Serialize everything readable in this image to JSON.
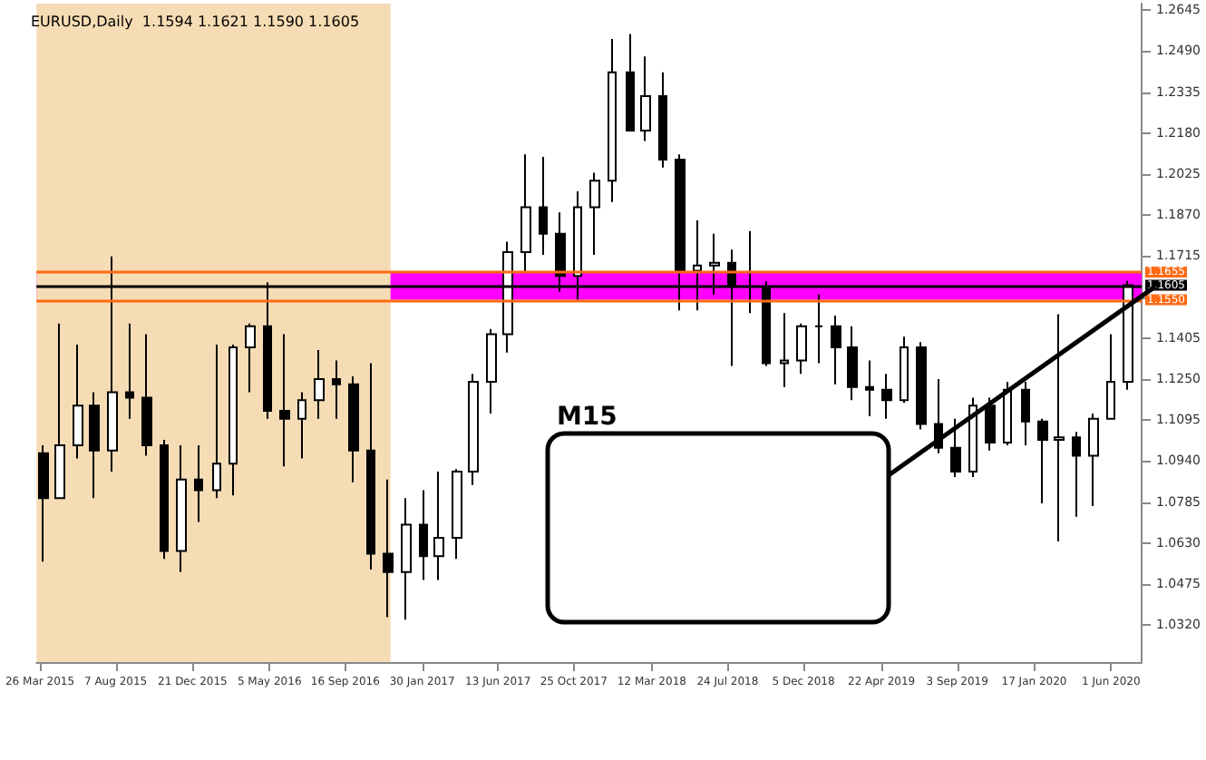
{
  "chart_data": {
    "type": "candlestick",
    "title": "EURUSD,Daily  1.1594 1.1621 1.1590 1.1605",
    "x": [
      "2015-04",
      "2015-05",
      "2015-06",
      "2015-07",
      "2015-08",
      "2015-09",
      "2015-10",
      "2015-11",
      "2015-12",
      "2016-01",
      "2016-02",
      "2016-03",
      "2016-04",
      "2016-05",
      "2016-06",
      "2016-07",
      "2016-08",
      "2016-09",
      "2016-10",
      "2016-11",
      "2016-12",
      "2017-01",
      "2017-02",
      "2017-03",
      "2017-04",
      "2017-05",
      "2017-06",
      "2017-07",
      "2017-08",
      "2017-09",
      "2017-10",
      "2017-11",
      "2017-12",
      "2018-01",
      "2018-02",
      "2018-03",
      "2018-04",
      "2018-05",
      "2018-06",
      "2018-07",
      "2018-08",
      "2018-09",
      "2018-10",
      "2018-11",
      "2018-12",
      "2019-01",
      "2019-02",
      "2019-03",
      "2019-04",
      "2019-05",
      "2019-06",
      "2019-07",
      "2019-08",
      "2019-09",
      "2019-10",
      "2019-11",
      "2019-12",
      "2020-01",
      "2020-02",
      "2020-03",
      "2020-04",
      "2020-05",
      "2020-06",
      "2020-07"
    ],
    "ohlc": [
      [
        1.097,
        1.1,
        1.056,
        1.08
      ],
      [
        1.08,
        1.146,
        1.08,
        1.1
      ],
      [
        1.1,
        1.138,
        1.095,
        1.115
      ],
      [
        1.115,
        1.12,
        1.08,
        1.098
      ],
      [
        1.098,
        1.1714,
        1.09,
        1.12
      ],
      [
        1.12,
        1.146,
        1.11,
        1.118
      ],
      [
        1.118,
        1.142,
        1.096,
        1.1
      ],
      [
        1.1,
        1.102,
        1.057,
        1.06
      ],
      [
        1.06,
        1.1,
        1.052,
        1.087
      ],
      [
        1.087,
        1.1,
        1.071,
        1.083
      ],
      [
        1.083,
        1.138,
        1.08,
        1.093
      ],
      [
        1.093,
        1.138,
        1.081,
        1.137
      ],
      [
        1.137,
        1.146,
        1.12,
        1.145
      ],
      [
        1.145,
        1.1616,
        1.11,
        1.113
      ],
      [
        1.113,
        1.142,
        1.092,
        1.11
      ],
      [
        1.11,
        1.12,
        1.095,
        1.117
      ],
      [
        1.117,
        1.136,
        1.11,
        1.125
      ],
      [
        1.125,
        1.132,
        1.11,
        1.123
      ],
      [
        1.123,
        1.126,
        1.086,
        1.098
      ],
      [
        1.098,
        1.131,
        1.053,
        1.059
      ],
      [
        1.059,
        1.087,
        1.035,
        1.052
      ],
      [
        1.052,
        1.08,
        1.034,
        1.07
      ],
      [
        1.07,
        1.083,
        1.049,
        1.058
      ],
      [
        1.058,
        1.09,
        1.049,
        1.065
      ],
      [
        1.065,
        1.091,
        1.057,
        1.09
      ],
      [
        1.09,
        1.127,
        1.085,
        1.124
      ],
      [
        1.124,
        1.144,
        1.112,
        1.142
      ],
      [
        1.142,
        1.177,
        1.135,
        1.173
      ],
      [
        1.173,
        1.21,
        1.165,
        1.19
      ],
      [
        1.19,
        1.209,
        1.172,
        1.18
      ],
      [
        1.18,
        1.188,
        1.158,
        1.164
      ],
      [
        1.164,
        1.196,
        1.155,
        1.19
      ],
      [
        1.19,
        1.203,
        1.172,
        1.2
      ],
      [
        1.2,
        1.2536,
        1.192,
        1.241
      ],
      [
        1.241,
        1.2555,
        1.219,
        1.219
      ],
      [
        1.219,
        1.247,
        1.215,
        1.232
      ],
      [
        1.232,
        1.241,
        1.205,
        1.208
      ],
      [
        1.208,
        1.21,
        1.151,
        1.166
      ],
      [
        1.166,
        1.185,
        1.151,
        1.168
      ],
      [
        1.168,
        1.18,
        1.157,
        1.169
      ],
      [
        1.169,
        1.174,
        1.13,
        1.16
      ],
      [
        1.16,
        1.181,
        1.15,
        1.16
      ],
      [
        1.16,
        1.162,
        1.13,
        1.131
      ],
      [
        1.131,
        1.15,
        1.122,
        1.132
      ],
      [
        1.132,
        1.146,
        1.127,
        1.145
      ],
      [
        1.145,
        1.157,
        1.131,
        1.145
      ],
      [
        1.145,
        1.149,
        1.123,
        1.137
      ],
      [
        1.137,
        1.145,
        1.117,
        1.122
      ],
      [
        1.122,
        1.132,
        1.111,
        1.121
      ],
      [
        1.121,
        1.127,
        1.11,
        1.117
      ],
      [
        1.117,
        1.141,
        1.116,
        1.137
      ],
      [
        1.137,
        1.139,
        1.106,
        1.108
      ],
      [
        1.108,
        1.125,
        1.097,
        1.099
      ],
      [
        1.099,
        1.11,
        1.088,
        1.09
      ],
      [
        1.09,
        1.118,
        1.088,
        1.115
      ],
      [
        1.115,
        1.118,
        1.098,
        1.101
      ],
      [
        1.101,
        1.124,
        1.1,
        1.121
      ],
      [
        1.121,
        1.124,
        1.1,
        1.109
      ],
      [
        1.109,
        1.11,
        1.078,
        1.102
      ],
      [
        1.102,
        1.1495,
        1.0636,
        1.103
      ],
      [
        1.103,
        1.105,
        1.073,
        1.096
      ],
      [
        1.096,
        1.112,
        1.077,
        1.11
      ],
      [
        1.11,
        1.142,
        1.11,
        1.124
      ],
      [
        1.124,
        1.1621,
        1.121,
        1.1605
      ]
    ],
    "xlim": [
      "2015-03-20",
      "2020-07-25"
    ],
    "xticks": [
      {
        "value": "2015-03-26",
        "label": "26 Mar 2015"
      },
      {
        "value": "2015-08-07",
        "label": "7 Aug 2015"
      },
      {
        "value": "2015-12-21",
        "label": "21 Dec 2015"
      },
      {
        "value": "2016-05-05",
        "label": "5 May 2016"
      },
      {
        "value": "2016-09-16",
        "label": "16 Sep 2016"
      },
      {
        "value": "2017-01-30",
        "label": "30 Jan 2017"
      },
      {
        "value": "2017-06-13",
        "label": "13 Jun 2017"
      },
      {
        "value": "2017-10-25",
        "label": "25 Oct 2017"
      },
      {
        "value": "2018-03-12",
        "label": "12 Mar 2018"
      },
      {
        "value": "2018-07-24",
        "label": "24 Jul 2018"
      },
      {
        "value": "2018-12-05",
        "label": "5 Dec 2018"
      },
      {
        "value": "2019-04-22",
        "label": "22 Apr 2019"
      },
      {
        "value": "2019-09-03",
        "label": "3 Sep 2019"
      },
      {
        "value": "2020-01-17",
        "label": "17 Jan 2020"
      },
      {
        "value": "2020-06-01",
        "label": "1 Jun 2020"
      }
    ],
    "ylim": [
      1.018,
      1.267
    ],
    "yticks": [
      {
        "value": 1.032,
        "label": "1.0320"
      },
      {
        "value": 1.0475,
        "label": "1.0475"
      },
      {
        "value": 1.063,
        "label": "1.0630"
      },
      {
        "value": 1.0785,
        "label": "1.0785"
      },
      {
        "value": 1.094,
        "label": "1.0940"
      },
      {
        "value": 1.1095,
        "label": "1.1095"
      },
      {
        "value": 1.125,
        "label": "1.1250"
      },
      {
        "value": 1.1405,
        "label": "1.1405"
      },
      {
        "value": 1.156,
        "label": null
      },
      {
        "value": 1.1715,
        "label": "1.1715"
      },
      {
        "value": 1.187,
        "label": "1.1870"
      },
      {
        "value": 1.2025,
        "label": "1.2025"
      },
      {
        "value": 1.218,
        "label": "1.2180"
      },
      {
        "value": 1.2335,
        "label": "1.2335"
      },
      {
        "value": 1.249,
        "label": "1.2490"
      },
      {
        "value": 1.2645,
        "label": "1.2645"
      }
    ],
    "bands": [
      {
        "axis": "y",
        "from": 1.155,
        "to": 1.1655,
        "color": "#ff00ff"
      },
      {
        "axis": "x",
        "from": "2015-03-20",
        "to": "2016-12-05",
        "color": "#f5dcb4"
      }
    ],
    "ref_lines": [
      {
        "axis": "y",
        "value": 1.1655,
        "label": "1.1655",
        "color": "#ff6a13"
      },
      {
        "axis": "y",
        "value": 1.155,
        "label": "1.1550",
        "color": "#ff6a13"
      },
      {
        "axis": "y",
        "value": 1.1605,
        "label": "1.1605",
        "color": "#000000"
      }
    ],
    "annotations": [
      "M15"
    ],
    "grid": false
  }
}
